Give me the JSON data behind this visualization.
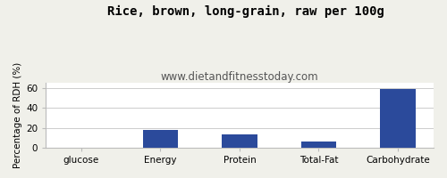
{
  "title": "Rice, brown, long-grain, raw per 100g",
  "subtitle": "www.dietandfitnesstoday.com",
  "categories": [
    "glucose",
    "Energy",
    "Protein",
    "Total-Fat",
    "Carbohydrate"
  ],
  "values": [
    0,
    18,
    13,
    6,
    59
  ],
  "bar_color": "#2b4a9b",
  "ylabel": "Percentage of RDH (%)",
  "ylim": [
    0,
    65
  ],
  "yticks": [
    0,
    20,
    40,
    60
  ],
  "background_color": "#f0f0ea",
  "plot_bg_color": "#ffffff",
  "border_color": "#bbbbbb",
  "grid_color": "#cccccc",
  "title_fontsize": 10,
  "subtitle_fontsize": 8.5,
  "tick_fontsize": 7.5,
  "ylabel_fontsize": 7.5,
  "title_color": "#000000",
  "subtitle_color": "#555555"
}
